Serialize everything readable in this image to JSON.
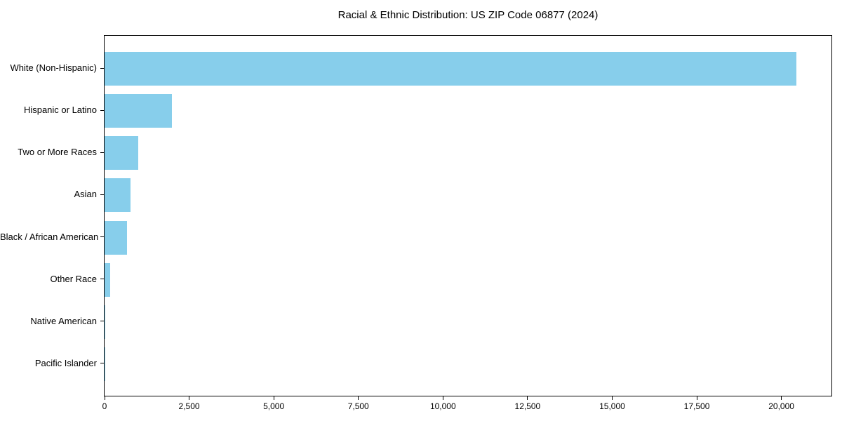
{
  "chart_data": {
    "type": "bar",
    "orientation": "horizontal",
    "title": "Racial & Ethnic Distribution: US ZIP Code 06877 (2024)",
    "categories": [
      "White (Non-Hispanic)",
      "Hispanic or Latino",
      "Two or More Races",
      "Asian",
      "Black / African American",
      "Other Race",
      "Native American",
      "Pacific Islander"
    ],
    "values": [
      20450,
      2000,
      1000,
      765,
      670,
      160,
      25,
      5
    ],
    "xlabel": "",
    "ylabel": "",
    "xlim": [
      0,
      21480
    ],
    "xticks": {
      "values": [
        0,
        2500,
        5000,
        7500,
        10000,
        12500,
        15000,
        17500,
        20000
      ],
      "labels": [
        "0",
        "2,500",
        "5,000",
        "7,500",
        "10,000",
        "12,500",
        "15,000",
        "17,500",
        "20,000"
      ]
    },
    "grid": false,
    "legend": null,
    "bar_color": "#87CEEB",
    "frame_color": "#000000",
    "text_color": "#000000"
  }
}
